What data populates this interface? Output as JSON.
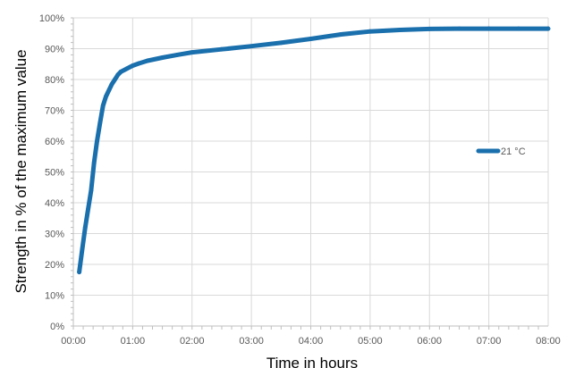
{
  "chart_data": {
    "type": "line",
    "xlabel": "Time in hours",
    "ylabel": "Strength in % of the maximum value",
    "x_unit": "hours",
    "xlim": [
      0,
      8
    ],
    "ylim": [
      0,
      100
    ],
    "x_ticks": [
      {
        "value": 0,
        "label": "00:00"
      },
      {
        "value": 1,
        "label": "01:00"
      },
      {
        "value": 2,
        "label": "02:00"
      },
      {
        "value": 3,
        "label": "03:00"
      },
      {
        "value": 4,
        "label": "04:00"
      },
      {
        "value": 5,
        "label": "05:00"
      },
      {
        "value": 6,
        "label": "06:00"
      },
      {
        "value": 7,
        "label": "07:00"
      },
      {
        "value": 8,
        "label": "08:00"
      }
    ],
    "x_minor_step": 0.1667,
    "y_ticks": [
      {
        "value": 0,
        "label": "0%"
      },
      {
        "value": 10,
        "label": "10%"
      },
      {
        "value": 20,
        "label": "20%"
      },
      {
        "value": 30,
        "label": "30%"
      },
      {
        "value": 40,
        "label": "40%"
      },
      {
        "value": 50,
        "label": "50%"
      },
      {
        "value": 60,
        "label": "60%"
      },
      {
        "value": 70,
        "label": "70%"
      },
      {
        "value": 80,
        "label": "80%"
      },
      {
        "value": 90,
        "label": "90%"
      },
      {
        "value": 100,
        "label": "100%"
      }
    ],
    "y_minor_step": 2,
    "grid": true,
    "legend_position": "right",
    "series": [
      {
        "name": "21 °C",
        "color": "#1a6fad",
        "x": [
          0.1,
          0.15,
          0.2,
          0.25,
          0.3,
          0.35,
          0.4,
          0.45,
          0.5,
          0.55,
          0.6,
          0.65,
          0.7,
          0.75,
          0.8,
          0.85,
          0.9,
          0.95,
          1.0,
          1.1,
          1.25,
          1.5,
          1.75,
          2.0,
          2.5,
          3.0,
          3.5,
          4.0,
          4.5,
          5.0,
          5.5,
          6.0,
          6.5,
          7.0,
          7.5,
          8.0
        ],
        "y": [
          17.5,
          25,
          32,
          38,
          44,
          53,
          60,
          66,
          71.5,
          74.5,
          76.5,
          78.5,
          80,
          81.5,
          82.5,
          83,
          83.5,
          84,
          84.5,
          85.2,
          86.1,
          87.1,
          88,
          88.8,
          89.8,
          90.8,
          91.9,
          93.2,
          94.6,
          95.6,
          96.1,
          96.4,
          96.5,
          96.5,
          96.5,
          96.5
        ]
      }
    ]
  }
}
